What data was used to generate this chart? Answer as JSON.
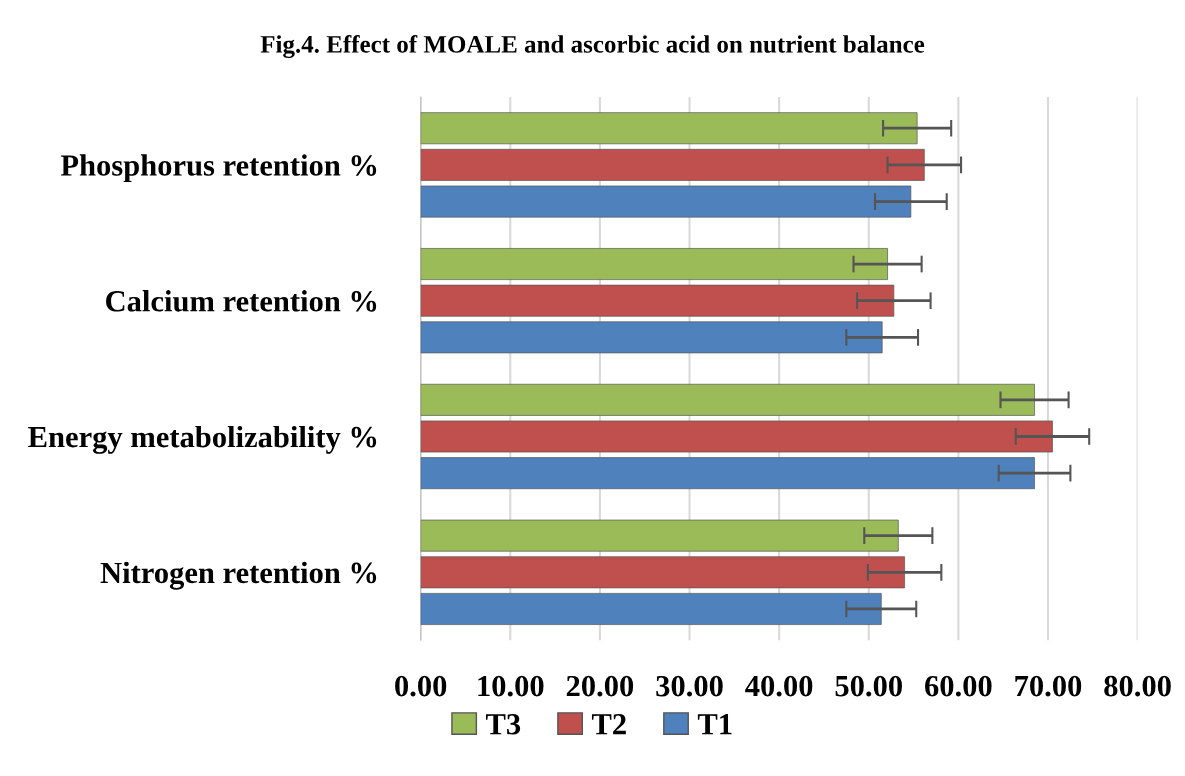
{
  "chart_data": {
    "type": "bar",
    "orientation": "horizontal",
    "title": "Fig.4. Effect of MOALE and ascorbic acid on nutrient balance",
    "categories": [
      "Phosphorus retention %",
      "Calcium retention %",
      "Energy metabolizability %",
      "Nitrogen retention %"
    ],
    "series": [
      {
        "name": "T3",
        "color": "#9bbb59",
        "values": [
          55.4,
          52.1,
          68.5,
          53.3
        ],
        "errors": [
          3.8,
          3.8,
          3.8,
          3.8
        ]
      },
      {
        "name": "T2",
        "color": "#c0504d",
        "values": [
          56.2,
          52.8,
          70.5,
          54.0
        ],
        "errors": [
          4.1,
          4.1,
          4.1,
          4.1
        ]
      },
      {
        "name": "T1",
        "color": "#4f81bd",
        "values": [
          54.7,
          51.5,
          68.5,
          51.4
        ],
        "errors": [
          4.0,
          4.0,
          4.0,
          3.9
        ]
      }
    ],
    "xlim": [
      0,
      80
    ],
    "xticks": [
      {
        "value": 0,
        "label": "0.00"
      },
      {
        "value": 10,
        "label": "10.00"
      },
      {
        "value": 20,
        "label": "20.00"
      },
      {
        "value": 30,
        "label": "30.00"
      },
      {
        "value": 40,
        "label": "40.00"
      },
      {
        "value": 50,
        "label": "50.00"
      },
      {
        "value": 60,
        "label": "60.00"
      },
      {
        "value": 70,
        "label": "70.00"
      },
      {
        "value": 80,
        "label": "80.00"
      }
    ],
    "grid": "x",
    "legend": "bottom"
  }
}
